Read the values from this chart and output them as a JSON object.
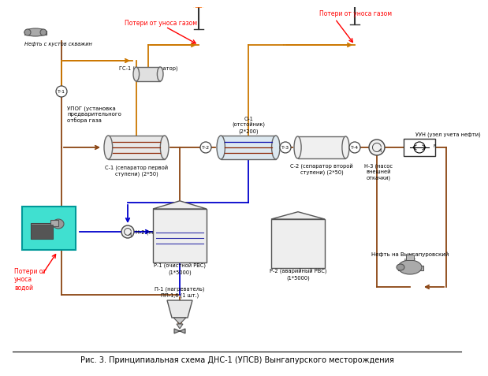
{
  "title": "Рис. 3. Принципиальная схема ДНС-1 (УПСВ) Вынгапурского месторождения",
  "bg_color": "#ffffff",
  "brown": "#8B4513",
  "orange": "#CC7700",
  "blue": "#0000CC",
  "red": "#FF0000",
  "darkred": "#990000",
  "gray_eq": "#888888",
  "fill_vessel": "#e8e8e8",
  "fill_settler": "#dce8f0",
  "fill_tank": "#e8e8e8",
  "fill_cyan": "#40E0D0",
  "label_oil_in": "Нефть с кустов скважин",
  "label_upog": "УПОГ (установка\nпредварительного\nотбора газа",
  "label_gs1": "ГС-1 (газосепаратор)",
  "label_s1": "С-1 (сепаратор первой\nступени) (2*50)",
  "label_t1": "Т-1",
  "label_t2": "Т-2",
  "label_t3": "Т-3",
  "label_t4": "Т-4",
  "label_o1": "О-1\n(отстойник)\n(2*200)",
  "label_s2": "С-2 (сепаратор второй\nступени) (2*50)",
  "label_n3": "Н-3 (насос\nвнешней\nоткачки)",
  "label_uun": "УУН (узел учета нефти)",
  "label_n2": "Н-2 (насос откачки воды)",
  "label_r1": "Р-1 (очистной РВС)\n(1*5000)",
  "label_r2": "Р-2 (аварийный РВС)\n(1*5000)",
  "label_p1": "П-1 (нагреватель)\nПП-1,6 (1 шт.)",
  "label_oil_out": "Нефть на Вынгапуровский\nЦПС",
  "label_loss_gas1": "Потери от уноса газом",
  "label_loss_gas2": "Потери от уноса газом",
  "label_loss_water": "Потери от\nуноса\nводой"
}
